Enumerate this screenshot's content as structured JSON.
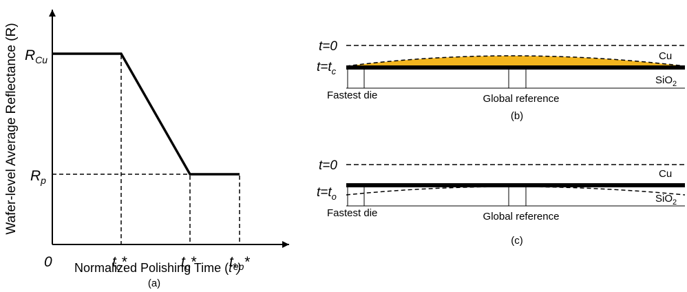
{
  "panel_a": {
    "y_axis_label": "Wafer-level Average Reflectance (R)",
    "x_axis_label_main": "Normalized Polishing Time (",
    "x_axis_label_var": "t*)",
    "caption": "(a)",
    "origin_label": "0",
    "r_cu": {
      "base": "R",
      "sub": "Cu"
    },
    "r_p": {
      "base": "R",
      "sub": "p"
    },
    "tc": {
      "base": "t",
      "sub": "c",
      "sup": "*"
    },
    "to": {
      "base": "t",
      "sub": "o",
      "sup": "*"
    },
    "tep": {
      "base": "t",
      "sub": "ep",
      "sup": "*"
    }
  },
  "panel_b": {
    "t0_label": "t=0",
    "tc_label": {
      "base": "t=t",
      "sub": "c"
    },
    "cu_label": "Cu",
    "sio2_label": {
      "base": "SiO",
      "sub": "2"
    },
    "fastest_die": "Fastest die",
    "global_reference": "Global reference",
    "caption": "(b)",
    "fill_color": "#f2b51e"
  },
  "panel_c": {
    "t0_label": "t=0",
    "to_label": {
      "base": "t=t",
      "sub": "o"
    },
    "cu_label": "Cu",
    "sio2_label": {
      "base": "SiO",
      "sub": "2"
    },
    "fastest_die": "Fastest die",
    "global_reference": "Global reference",
    "caption": "(c)"
  }
}
